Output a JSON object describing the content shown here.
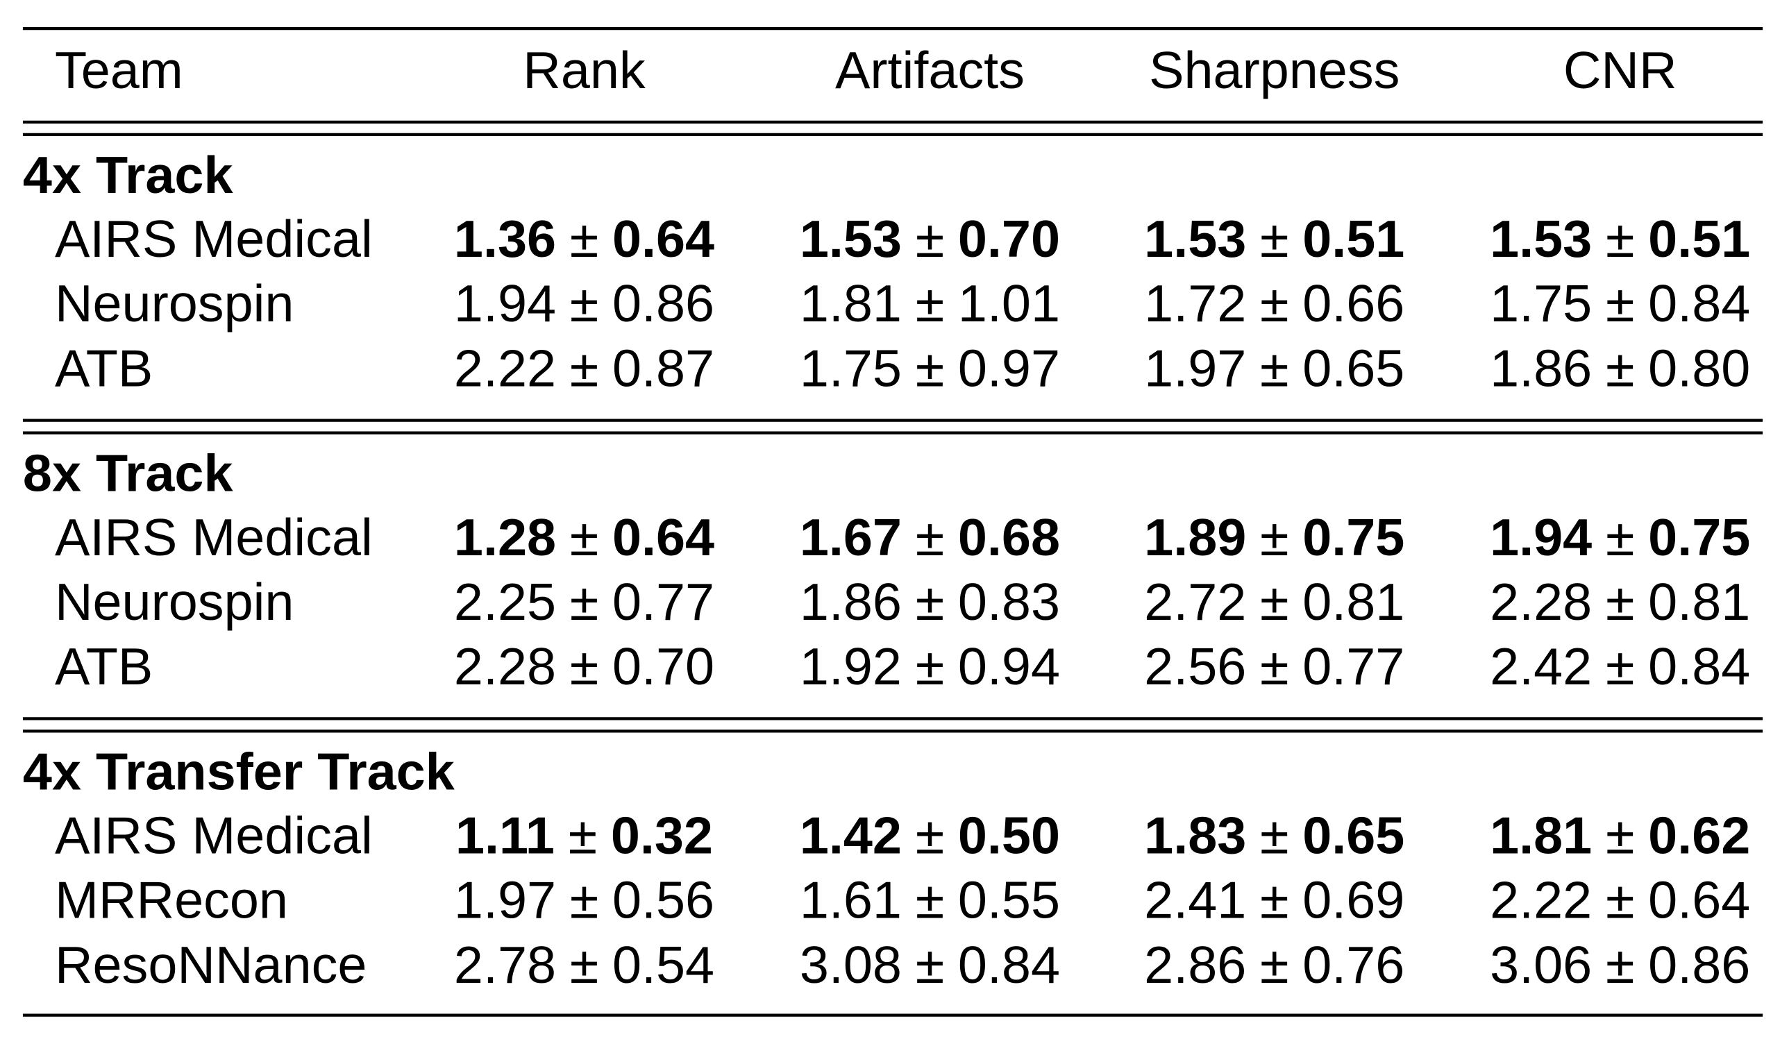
{
  "table": {
    "columns": [
      "Team",
      "Rank",
      "Artifacts",
      "Sharpness",
      "CNR"
    ],
    "separator": "±",
    "sections": [
      {
        "title": "4x Track",
        "rows": [
          {
            "team": "AIRS Medical",
            "best": true,
            "cells": [
              [
                "1.36",
                "0.64"
              ],
              [
                "1.53",
                "0.70"
              ],
              [
                "1.53",
                "0.51"
              ],
              [
                "1.53",
                "0.51"
              ]
            ]
          },
          {
            "team": "Neurospin",
            "best": false,
            "cells": [
              [
                "1.94",
                "0.86"
              ],
              [
                "1.81",
                "1.01"
              ],
              [
                "1.72",
                "0.66"
              ],
              [
                "1.75",
                "0.84"
              ]
            ]
          },
          {
            "team": "ATB",
            "best": false,
            "cells": [
              [
                "2.22",
                "0.87"
              ],
              [
                "1.75",
                "0.97"
              ],
              [
                "1.97",
                "0.65"
              ],
              [
                "1.86",
                "0.80"
              ]
            ]
          }
        ]
      },
      {
        "title": "8x Track",
        "rows": [
          {
            "team": "AIRS Medical",
            "best": true,
            "cells": [
              [
                "1.28",
                "0.64"
              ],
              [
                "1.67",
                "0.68"
              ],
              [
                "1.89",
                "0.75"
              ],
              [
                "1.94",
                "0.75"
              ]
            ]
          },
          {
            "team": "Neurospin",
            "best": false,
            "cells": [
              [
                "2.25",
                "0.77"
              ],
              [
                "1.86",
                "0.83"
              ],
              [
                "2.72",
                "0.81"
              ],
              [
                "2.28",
                "0.81"
              ]
            ]
          },
          {
            "team": "ATB",
            "best": false,
            "cells": [
              [
                "2.28",
                "0.70"
              ],
              [
                "1.92",
                "0.94"
              ],
              [
                "2.56",
                "0.77"
              ],
              [
                "2.42",
                "0.84"
              ]
            ]
          }
        ]
      },
      {
        "title": "4x Transfer Track",
        "rows": [
          {
            "team": "AIRS Medical",
            "best": true,
            "cells": [
              [
                "1.11",
                "0.32"
              ],
              [
                "1.42",
                "0.50"
              ],
              [
                "1.83",
                "0.65"
              ],
              [
                "1.81",
                "0.62"
              ]
            ]
          },
          {
            "team": "MRRecon",
            "best": false,
            "cells": [
              [
                "1.97",
                "0.56"
              ],
              [
                "1.61",
                "0.55"
              ],
              [
                "2.41",
                "0.69"
              ],
              [
                "2.22",
                "0.64"
              ]
            ]
          },
          {
            "team": "ResoNNance",
            "best": false,
            "cells": [
              [
                "2.78",
                "0.54"
              ],
              [
                "3.08",
                "0.84"
              ],
              [
                "2.86",
                "0.76"
              ],
              [
                "3.06",
                "0.86"
              ]
            ]
          }
        ]
      }
    ]
  }
}
